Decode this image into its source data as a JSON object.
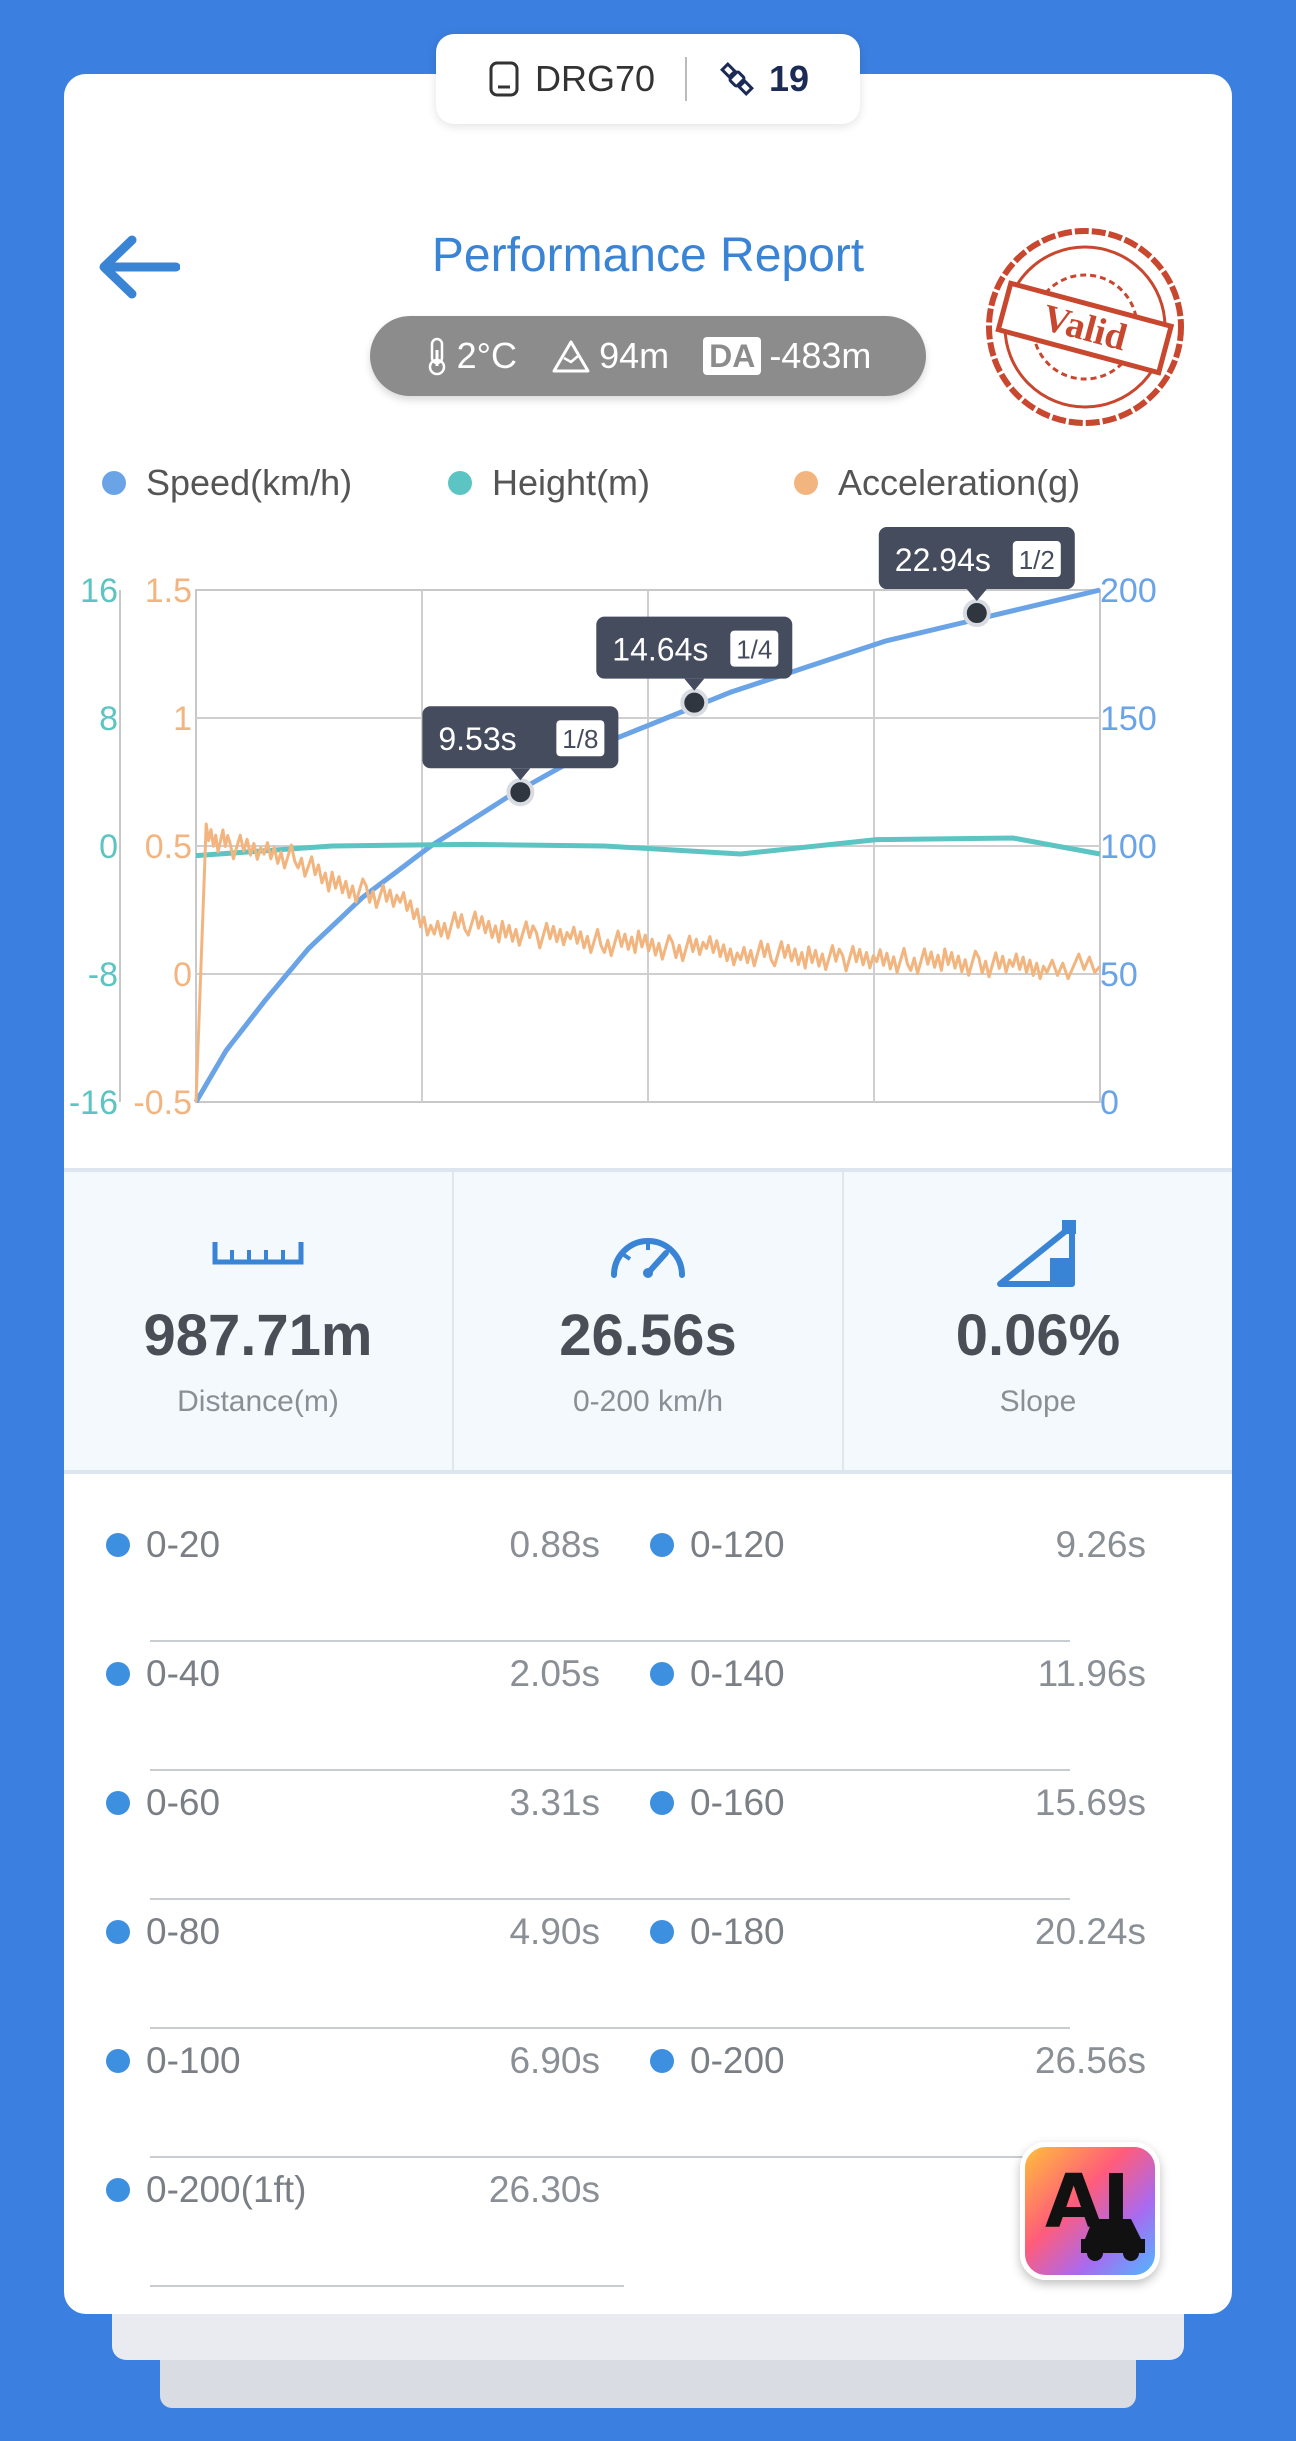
{
  "device": {
    "name": "DRG70",
    "satellites": "19"
  },
  "header": {
    "title": "Performance Report",
    "stamp": "Valid"
  },
  "conditions": {
    "temperature": "2°C",
    "altitude": "94m",
    "da_label": "DA",
    "density_altitude": "-483m"
  },
  "chart_data": {
    "type": "line",
    "legend": [
      "Speed(km/h)",
      "Height(m)",
      "Acceleration(g)"
    ],
    "colors": {
      "speed": "#6aa4e6",
      "height": "#5cc4c2",
      "acceleration": "#f3b57f"
    },
    "axes": {
      "height": {
        "ticks": [
          "16",
          "8",
          "0",
          "-8",
          "-16"
        ],
        "ylim": [
          -16,
          16
        ]
      },
      "acceleration": {
        "ticks": [
          "1.5",
          "1",
          "0.5",
          "0",
          "-0.5"
        ],
        "ylim": [
          -0.5,
          1.5
        ]
      },
      "speed": {
        "ticks": [
          "200",
          "150",
          "100",
          "50",
          "0"
        ],
        "ylim": [
          0,
          200
        ]
      },
      "xlim": [
        0,
        26.56
      ]
    },
    "grid": true,
    "series": [
      {
        "name": "Speed(km/h)",
        "axis": "speed",
        "x": [
          0,
          0.88,
          2.05,
          3.31,
          4.9,
          6.9,
          9.26,
          11.96,
          15.69,
          20.24,
          26.56
        ],
        "y": [
          0,
          20,
          40,
          60,
          80,
          100,
          120,
          140,
          160,
          180,
          200
        ]
      },
      {
        "name": "Height(m)",
        "axis": "height",
        "x": [
          0,
          4,
          8,
          12,
          16,
          20,
          24,
          26.56
        ],
        "y": [
          -0.6,
          0,
          0.1,
          0,
          -0.5,
          0.4,
          0.5,
          -0.5
        ]
      },
      {
        "name": "Acceleration(g)",
        "axis": "acceleration",
        "x": [
          0,
          0.3,
          1,
          2,
          3,
          4,
          5,
          6,
          7,
          8,
          9,
          10,
          11,
          12,
          13,
          14,
          15,
          16,
          17,
          18,
          19,
          20,
          21,
          22,
          23,
          24,
          25,
          26.56
        ],
        "y": [
          -0.5,
          0.55,
          0.5,
          0.48,
          0.45,
          0.35,
          0.32,
          0.28,
          0.18,
          0.2,
          0.17,
          0.15,
          0.15,
          0.12,
          0.12,
          0.1,
          0.1,
          0.08,
          0.08,
          0.07,
          0.06,
          0.06,
          0.05,
          0.05,
          0.04,
          0.03,
          0.03,
          0.03
        ]
      }
    ],
    "markers": [
      {
        "time": "9.53s",
        "fraction": "1/8",
        "x": 9.53,
        "y": 121
      },
      {
        "time": "14.64s",
        "fraction": "1/4",
        "x": 14.64,
        "y": 156
      },
      {
        "time": "22.94s",
        "fraction": "1/2",
        "x": 22.94,
        "y": 191
      }
    ]
  },
  "stats": [
    {
      "value": "987.71m",
      "label": "Distance(m)",
      "icon": "ruler-icon"
    },
    {
      "value": "26.56s",
      "label": "0-200 km/h",
      "icon": "speedometer-icon"
    },
    {
      "value": "0.06%",
      "label": "Slope",
      "icon": "slope-icon"
    }
  ],
  "splits": [
    [
      {
        "name": "0-20",
        "time": "0.88s"
      },
      {
        "name": "0-120",
        "time": "9.26s"
      }
    ],
    [
      {
        "name": "0-40",
        "time": "2.05s"
      },
      {
        "name": "0-140",
        "time": "11.96s"
      }
    ],
    [
      {
        "name": "0-60",
        "time": "3.31s"
      },
      {
        "name": "0-160",
        "time": "15.69s"
      }
    ],
    [
      {
        "name": "0-80",
        "time": "4.90s"
      },
      {
        "name": "0-180",
        "time": "20.24s"
      }
    ],
    [
      {
        "name": "0-100",
        "time": "6.90s"
      },
      {
        "name": "0-200",
        "time": "26.56s"
      }
    ],
    [
      {
        "name": "0-200(1ft)",
        "time": "26.30s"
      }
    ]
  ],
  "ai_button": {
    "label": "AI"
  }
}
